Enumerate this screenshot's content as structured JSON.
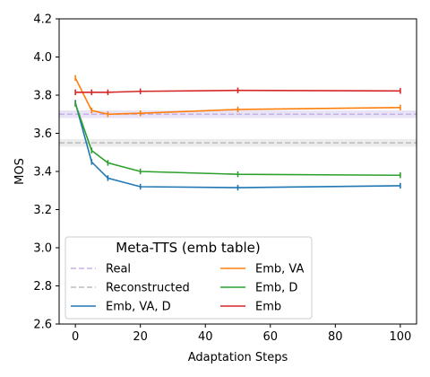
{
  "chart_data": {
    "type": "line",
    "xlabel": "Adaptation Steps",
    "ylabel": "MOS",
    "xlim": [
      -5,
      105
    ],
    "ylim": [
      2.6,
      4.2
    ],
    "x_ticks": [
      0,
      20,
      40,
      60,
      80,
      100
    ],
    "y_ticks": [
      2.6,
      2.8,
      3.0,
      3.2,
      3.4,
      3.6,
      3.8,
      4.0,
      4.2
    ],
    "x_tick_labels": [
      "0",
      "20",
      "40",
      "60",
      "80",
      "100"
    ],
    "y_tick_labels": [
      "2.6",
      "2.8",
      "3.0",
      "3.2",
      "3.4",
      "3.6",
      "3.8",
      "4.0",
      "4.2"
    ],
    "grid": false,
    "legend": {
      "title": "Meta-TTS (emb table)",
      "placement": "lower-left",
      "columns": 2
    },
    "reference_lines": [
      {
        "name": "Real",
        "y": 3.7,
        "band": [
          3.68,
          3.72
        ],
        "color": "#c5b0e8",
        "band_color": "#e2d9f3"
      },
      {
        "name": "Reconstructed",
        "y": 3.55,
        "band": [
          3.53,
          3.57
        ],
        "color": "#bbbbbb",
        "band_color": "#e5e5e5"
      }
    ],
    "x": [
      0,
      5,
      10,
      20,
      50,
      100
    ],
    "series": [
      {
        "name": "Emb, VA, D",
        "color": "#1f77b4",
        "values": [
          3.76,
          3.45,
          3.365,
          3.32,
          3.315,
          3.325
        ],
        "errors": [
          0.015,
          0.015,
          0.015,
          0.015,
          0.015,
          0.015
        ]
      },
      {
        "name": "Emb, VA",
        "color": "#ff7f0e",
        "values": [
          3.89,
          3.72,
          3.7,
          3.705,
          3.725,
          3.735
        ],
        "errors": [
          0.015,
          0.015,
          0.015,
          0.015,
          0.015,
          0.015
        ]
      },
      {
        "name": "Emb, D",
        "color": "#2ca02c",
        "values": [
          3.755,
          3.51,
          3.445,
          3.4,
          3.385,
          3.38
        ],
        "errors": [
          0.015,
          0.015,
          0.015,
          0.015,
          0.015,
          0.015
        ]
      },
      {
        "name": "Emb",
        "color": "#d62728",
        "values": [
          3.815,
          3.815,
          3.815,
          3.82,
          3.825,
          3.822
        ],
        "errors": [
          0.015,
          0.015,
          0.015,
          0.015,
          0.015,
          0.015
        ]
      }
    ]
  }
}
